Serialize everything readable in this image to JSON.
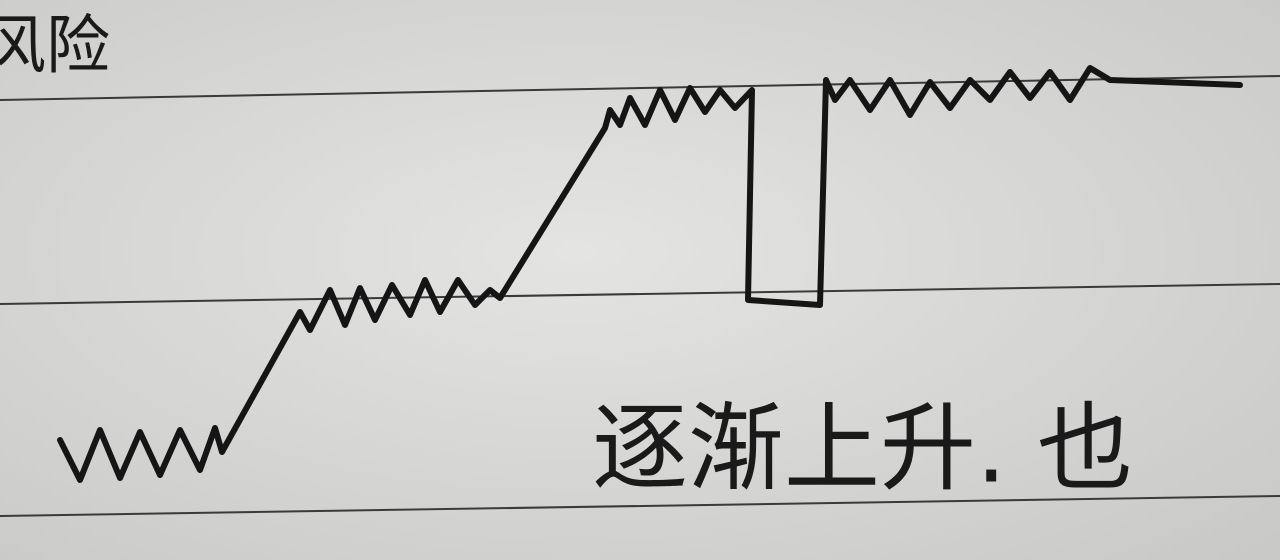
{
  "header": {
    "text": "风险"
  },
  "caption": {
    "text": "逐渐上升. 也"
  }
}
